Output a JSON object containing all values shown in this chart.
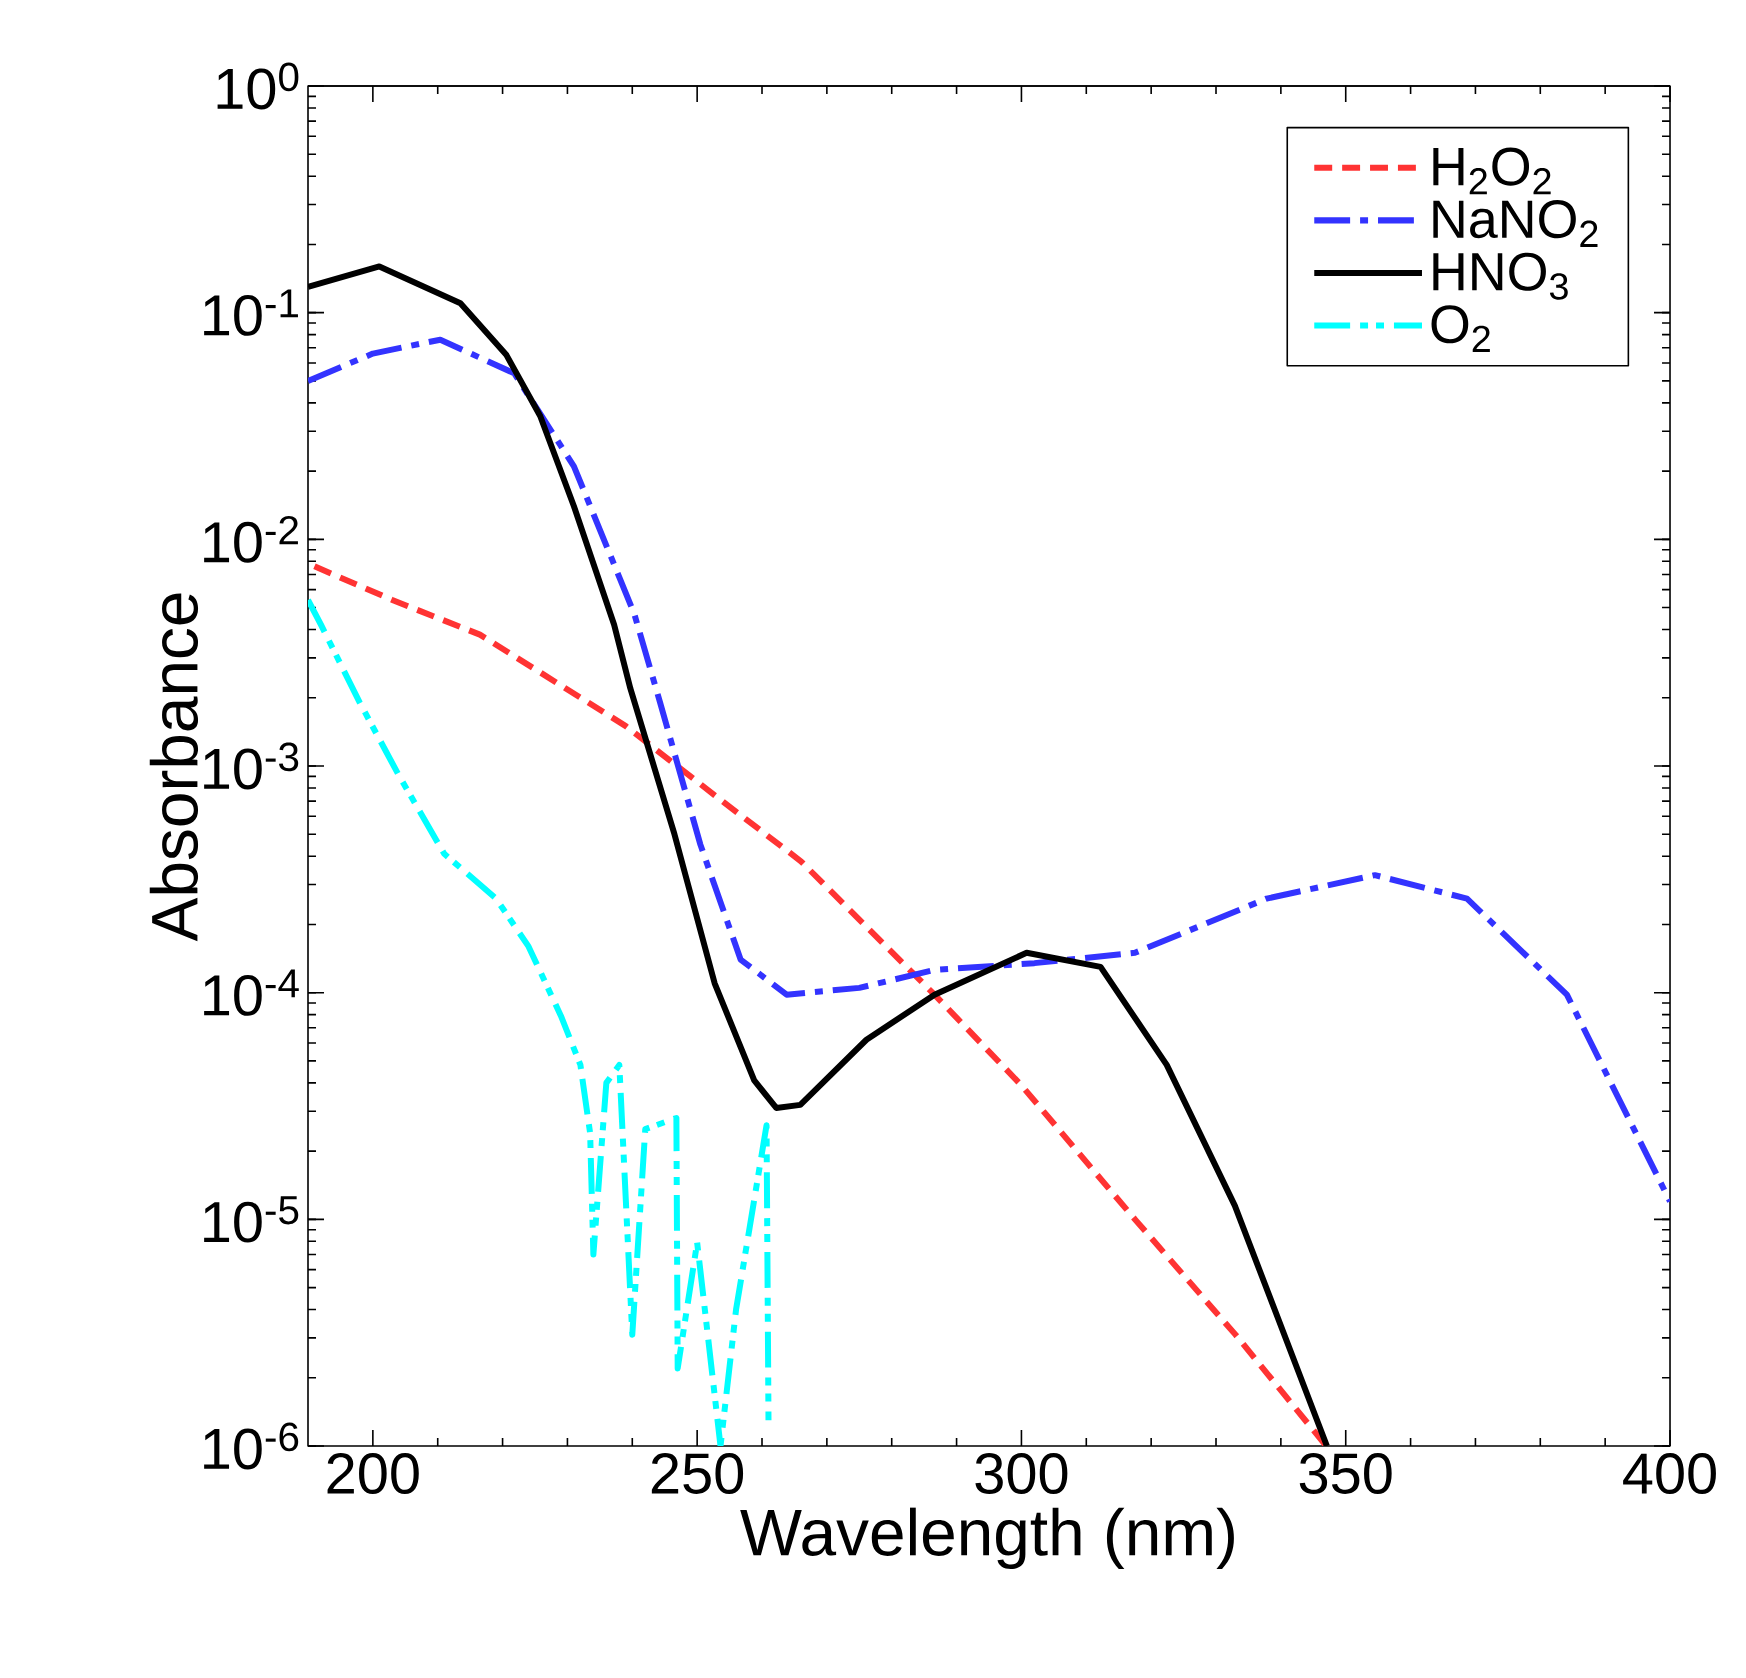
{
  "chart_data": {
    "type": "line",
    "xlabel": "Wavelength (nm)",
    "ylabel": "Absorbance",
    "log": "y",
    "legend": "top right",
    "xlim": [
      190,
      400
    ],
    "xticks": [
      200,
      250,
      300,
      350,
      400
    ],
    "ylim": [
      1e-06,
      1
    ],
    "yticks": [
      {
        "value": 1e-06,
        "label": "10$^{-6}$"
      },
      {
        "value": 1e-05,
        "label": "10$^{-5}$"
      },
      {
        "value": 0.0001,
        "label": "10$^{-4}$"
      },
      {
        "value": 0.001,
        "label": "10$^{-3}$"
      },
      {
        "value": 0.01,
        "label": "10$^{-2}$"
      },
      {
        "value": 0.1,
        "label": "10$^{-1}$"
      },
      {
        "value": 1,
        "label": "10$^{0}$"
      }
    ],
    "series": [
      {
        "name": "H$_{2}$O$_{2}$",
        "color": "#ff3333",
        "line_style": "dashed",
        "x": [
          191,
          203,
          216.5,
          239,
          253.6,
          266,
          275,
          286.6,
          300,
          317.5,
          333,
          347
        ],
        "values": [
          0.0076,
          0.0054,
          0.0038,
          0.0015,
          0.00071,
          0.00038,
          0.00021,
          9.8e-05,
          3.9e-05,
          1e-05,
          3.1e-06,
          1e-06
        ]
      },
      {
        "name": "NaNO$_{2}$",
        "color": "#3333ff",
        "line_style": "dashdot",
        "x": [
          190,
          200,
          210.4,
          221.8,
          231,
          240.3,
          244.3,
          250.5,
          256.7,
          263.8,
          275,
          286.6,
          302,
          317.5,
          337.8,
          354.5,
          368.7,
          384.1,
          400
        ],
        "values": [
          0.05,
          0.066,
          0.076,
          0.054,
          0.021,
          0.0047,
          0.0019,
          0.00045,
          0.00014,
          9.8e-05,
          0.000105,
          0.000126,
          0.000135,
          0.00015,
          0.00026,
          0.00033,
          0.00026,
          9.8e-05,
          1.2e-05
        ]
      },
      {
        "name": "HNO$_{3}$",
        "color": "#000000",
        "line_style": "solid",
        "x": [
          190,
          201,
          213.5,
          220.6,
          225.8,
          231,
          237.2,
          239.7,
          246.5,
          252.7,
          258.8,
          262.2,
          265.9,
          276.1,
          286.6,
          300.8,
          312.2,
          322.4,
          332.9,
          347.1
        ],
        "values": [
          0.13,
          0.16,
          0.11,
          0.065,
          0.035,
          0.014,
          0.0042,
          0.0022,
          0.0005,
          0.00011,
          4.1e-05,
          3.1e-05,
          3.2e-05,
          6.2e-05,
          9.8e-05,
          0.00015,
          0.00013,
          4.8e-05,
          1.15e-05,
          1e-06
        ]
      },
      {
        "name": "O$_{2}$",
        "color": "#00ffff",
        "line_style": "dashdotdot",
        "x": [
          190,
          192,
          198,
          204,
          211,
          219,
          224,
          229,
          232,
          233.5,
          234,
          236,
          238,
          240,
          242,
          246.8,
          247,
          250,
          253.6,
          256,
          260.7,
          261
        ],
        "values": [
          0.0054,
          0.0042,
          0.0019,
          0.00091,
          0.00041,
          0.00026,
          0.00016,
          7.9e-05,
          4.8e-05,
          2.4e-05,
          7e-06,
          4e-05,
          4.8e-05,
          3.1e-06,
          2.5e-05,
          2.8e-05,
          2.2e-06,
          7.9e-06,
          1e-06,
          4e-06,
          2.6e-05,
          1.3e-06
        ]
      }
    ]
  }
}
